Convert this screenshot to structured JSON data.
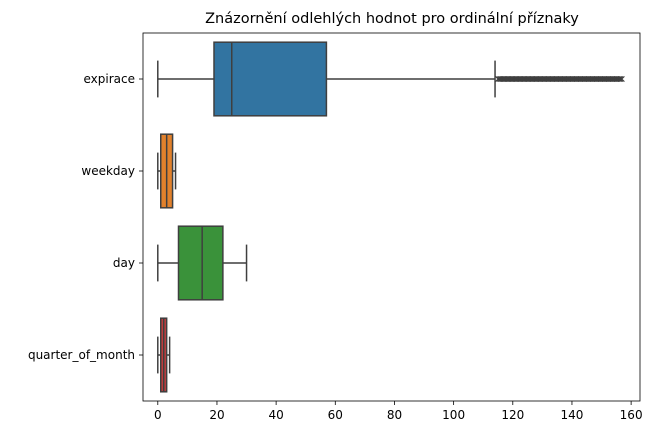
{
  "chart_data": {
    "type": "boxplot",
    "orientation": "horizontal",
    "title": "Znázornění odlehlých hodnot pro ordinální příznaky",
    "xlabel": "",
    "ylabel": "",
    "xlim": [
      -5,
      163
    ],
    "xticks": [
      0,
      20,
      40,
      60,
      80,
      100,
      120,
      140,
      160
    ],
    "grid": false,
    "categories": [
      "expirace",
      "weekday",
      "day",
      "quarter_of_month"
    ],
    "boxes": [
      {
        "category": "expirace",
        "whisker_low": 0,
        "q1": 19,
        "median": 25,
        "q3": 57,
        "whisker_high": 114,
        "outliers_from": 115,
        "outliers_to": 157,
        "color": "#3274a1"
      },
      {
        "category": "weekday",
        "whisker_low": 0,
        "q1": 1,
        "median": 3,
        "q3": 5,
        "whisker_high": 6,
        "color": "#e1812c"
      },
      {
        "category": "day",
        "whisker_low": 0,
        "q1": 7,
        "median": 15,
        "q3": 22,
        "whisker_high": 30,
        "color": "#3a923a"
      },
      {
        "category": "quarter_of_month",
        "whisker_low": 0,
        "q1": 1,
        "median": 2,
        "q3": 3,
        "whisker_high": 4,
        "color": "#c03d3e"
      }
    ],
    "line_color": "#3f3f3f"
  }
}
